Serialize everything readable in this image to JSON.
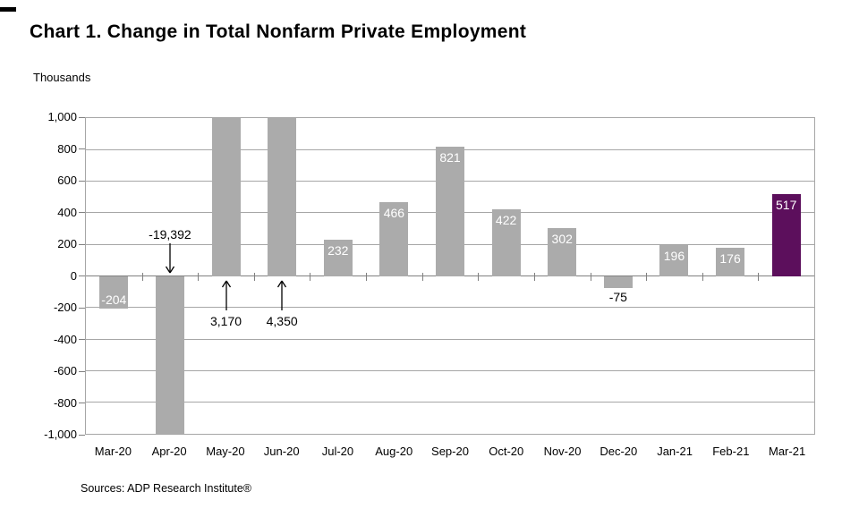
{
  "chart_data": {
    "type": "bar",
    "title": "Chart 1. Change in Total Nonfarm Private Employment",
    "units_label": "Thousands",
    "source": "Sources: ADP Research Institute®",
    "categories": [
      "Mar-20",
      "Apr-20",
      "May-20",
      "Jun-20",
      "Jul-20",
      "Aug-20",
      "Sep-20",
      "Oct-20",
      "Nov-20",
      "Dec-20",
      "Jan-21",
      "Feb-21",
      "Mar-21"
    ],
    "values": [
      -204,
      -19392,
      3170,
      4350,
      232,
      466,
      821,
      422,
      302,
      -75,
      196,
      176,
      517
    ],
    "value_labels": [
      "-204",
      "-19,392",
      "3,170",
      "4,350",
      "232",
      "466",
      "821",
      "422",
      "302",
      "-75",
      "196",
      "176",
      "517"
    ],
    "label_placement": [
      "inside",
      "callout-down",
      "callout-up",
      "callout-up",
      "inside",
      "inside",
      "inside",
      "inside",
      "inside",
      "below",
      "inside",
      "inside",
      "inside"
    ],
    "ylim": [
      -1000,
      1000
    ],
    "ytick_step": 200,
    "ytick_labels": [
      "1,000",
      "800",
      "600",
      "400",
      "200",
      "0",
      "-200",
      "-400",
      "-600",
      "-800",
      "-1,000"
    ],
    "grid": true,
    "legend": "none",
    "colors": {
      "bar_default": "#ababab",
      "bar_highlight": "#5c0f5c",
      "highlight_index": 12,
      "gridline": "#a6a6a6",
      "zero_line": "#808080",
      "label_inside": "#ffffff",
      "label_outside": "#000000",
      "arrow": "#000000"
    }
  }
}
